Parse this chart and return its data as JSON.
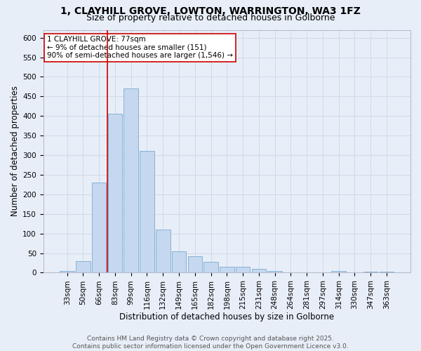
{
  "title": "1, CLAYHILL GROVE, LOWTON, WARRINGTON, WA3 1FZ",
  "subtitle": "Size of property relative to detached houses in Golborne",
  "xlabel": "Distribution of detached houses by size in Golborne",
  "ylabel": "Number of detached properties",
  "bar_labels": [
    "33sqm",
    "50sqm",
    "66sqm",
    "83sqm",
    "99sqm",
    "116sqm",
    "132sqm",
    "149sqm",
    "165sqm",
    "182sqm",
    "198sqm",
    "215sqm",
    "231sqm",
    "248sqm",
    "264sqm",
    "281sqm",
    "297sqm",
    "314sqm",
    "330sqm",
    "347sqm",
    "363sqm"
  ],
  "bar_values": [
    5,
    30,
    230,
    405,
    470,
    310,
    110,
    55,
    42,
    27,
    15,
    15,
    10,
    4,
    0,
    0,
    0,
    4,
    0,
    3,
    3
  ],
  "bar_color": "#c5d8f0",
  "bar_edge_color": "#7aabcf",
  "grid_color": "#d0dcea",
  "background_color": "#e8eef8",
  "vline_color": "#cc0000",
  "vline_x_index": 2.5,
  "annotation_text": "1 CLAYHILL GROVE: 77sqm\n← 9% of detached houses are smaller (151)\n90% of semi-detached houses are larger (1,546) →",
  "annotation_box_color": "#ffffff",
  "annotation_box_edge": "#cc0000",
  "ylim": [
    0,
    620
  ],
  "yticks": [
    0,
    50,
    100,
    150,
    200,
    250,
    300,
    350,
    400,
    450,
    500,
    550,
    600
  ],
  "footer": "Contains HM Land Registry data © Crown copyright and database right 2025.\nContains public sector information licensed under the Open Government Licence v3.0.",
  "title_fontsize": 10,
  "subtitle_fontsize": 9,
  "axis_label_fontsize": 8.5,
  "tick_fontsize": 7.5,
  "annotation_fontsize": 7.5,
  "footer_fontsize": 6.5
}
